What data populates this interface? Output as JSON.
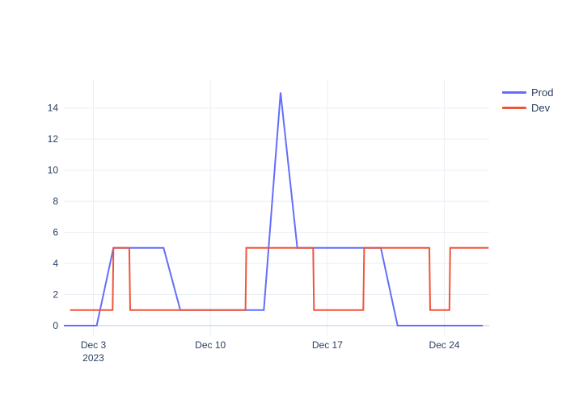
{
  "chart_data": {
    "type": "line",
    "title": "",
    "xlabel": "",
    "ylabel": "",
    "x_axis": {
      "unit": "date",
      "month_year": "December 2023",
      "tick_days": [
        3,
        10,
        17,
        24
      ],
      "tick_labels": [
        "Dec 3",
        "Dec 10",
        "Dec 17",
        "Dec 24"
      ],
      "tick_sublabels": [
        "2023",
        "",
        "",
        ""
      ],
      "range_days": [
        1.2,
        26.65
      ]
    },
    "y_axis": {
      "ticks": [
        0,
        2,
        4,
        6,
        8,
        10,
        12,
        14
      ],
      "tick_labels": [
        "0",
        "2",
        "4",
        "6",
        "8",
        "10",
        "12",
        "14"
      ],
      "range": [
        -0.73,
        15.8
      ]
    },
    "grid": true,
    "legend_position": "outside-top-right",
    "series": [
      {
        "name": "Prod",
        "color": "#636EFA",
        "points_day_value": [
          [
            1.2,
            0
          ],
          [
            3.2,
            0
          ],
          [
            4.2,
            5
          ],
          [
            7.2,
            5
          ],
          [
            8.2,
            1
          ],
          [
            13.2,
            1
          ],
          [
            14.2,
            15
          ],
          [
            15.2,
            5
          ],
          [
            20.2,
            5
          ],
          [
            21.2,
            0
          ],
          [
            26.3,
            0
          ]
        ]
      },
      {
        "name": "Dev",
        "color": "#EF553B",
        "points_day_value": [
          [
            1.6,
            1
          ],
          [
            4.15,
            1
          ],
          [
            4.2,
            5
          ],
          [
            5.15,
            5
          ],
          [
            5.2,
            1
          ],
          [
            12.1,
            1
          ],
          [
            12.15,
            5
          ],
          [
            16.15,
            5
          ],
          [
            16.2,
            1
          ],
          [
            19.15,
            1
          ],
          [
            19.2,
            5
          ],
          [
            23.1,
            5
          ],
          [
            23.15,
            1
          ],
          [
            24.3,
            1
          ],
          [
            24.35,
            5
          ],
          [
            26.65,
            5
          ]
        ]
      }
    ],
    "style": {
      "background": "#ffffff",
      "text_color": "#2a3f5f",
      "grid_color": "#eaeef5",
      "zeroline_color": "#dee5ef",
      "tick_font_px": 12,
      "legend_font_px": 13
    }
  }
}
